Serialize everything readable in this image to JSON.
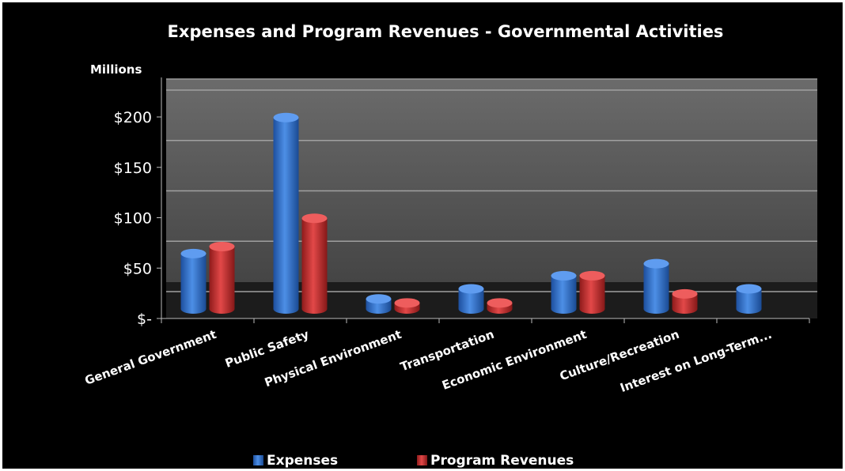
{
  "chart_data": {
    "type": "bar",
    "title": "Expenses and Program Revenues - Governmental Activities",
    "ylabel": "Millions",
    "categories": [
      "General Government",
      "Public Safety",
      "Physical Environment",
      "Transportation",
      "Economic Environment",
      "Culture/Recreation",
      "Interest on Long-Term..."
    ],
    "series": [
      {
        "name": "Expenses",
        "values": [
          55,
          190,
          10,
          20,
          33,
          45,
          20
        ],
        "color": "#2f6fcc"
      },
      {
        "name": "Program Revenues",
        "values": [
          62,
          90,
          6,
          6,
          33,
          15,
          0
        ],
        "color": "#c62a2a"
      }
    ],
    "ylim": [
      0,
      200
    ],
    "yticks": [
      {
        "value": 0,
        "label": "$-"
      },
      {
        "value": 50,
        "label": "$50"
      },
      {
        "value": 100,
        "label": "$100"
      },
      {
        "value": 150,
        "label": "$150"
      },
      {
        "value": 200,
        "label": "$200"
      }
    ],
    "grid": true,
    "legend": "bottom"
  }
}
